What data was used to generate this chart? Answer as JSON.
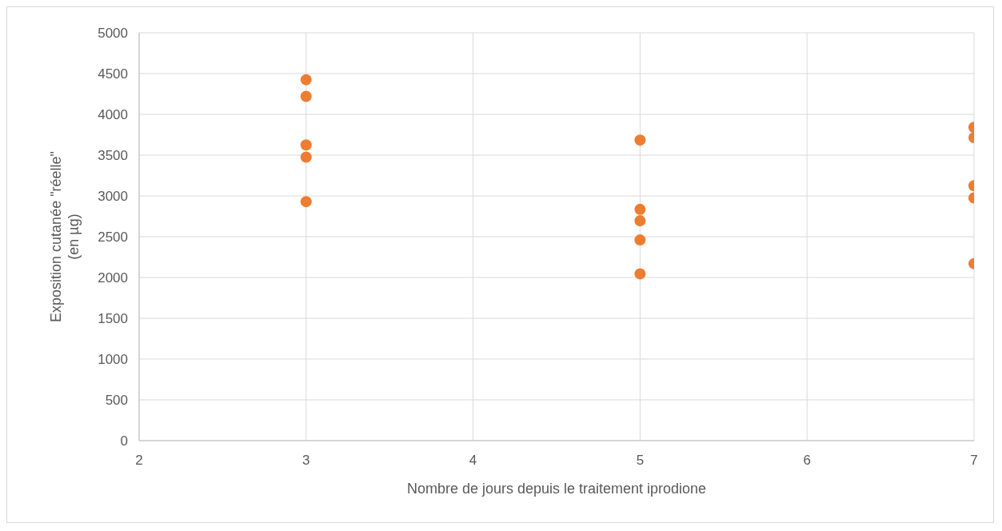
{
  "chart_data": {
    "type": "scatter",
    "xlabel": "Nombre de jours depuis le traitement iprodione",
    "ylabel": "Exposition cutanée \"réelle\"\n(en µg)",
    "x": [
      3,
      3,
      3,
      3,
      3,
      5,
      5,
      5,
      5,
      5,
      7,
      7,
      7,
      7,
      7
    ],
    "series": [
      {
        "color": "#ed7d31",
        "values": [
          4425,
          4220,
          3625,
          3475,
          2930,
          3685,
          2835,
          2695,
          2460,
          2045,
          3840,
          3715,
          3125,
          2975,
          2170
        ]
      }
    ],
    "xlim": [
      2,
      7
    ],
    "xticks": [
      2,
      3,
      4,
      5,
      6,
      7
    ],
    "ylim": [
      0,
      5000
    ],
    "yticks": [
      0,
      500,
      1000,
      1500,
      2000,
      2500,
      3000,
      3500,
      4000,
      4500,
      5000
    ],
    "grid": true,
    "marker": "circle",
    "legend": false
  }
}
